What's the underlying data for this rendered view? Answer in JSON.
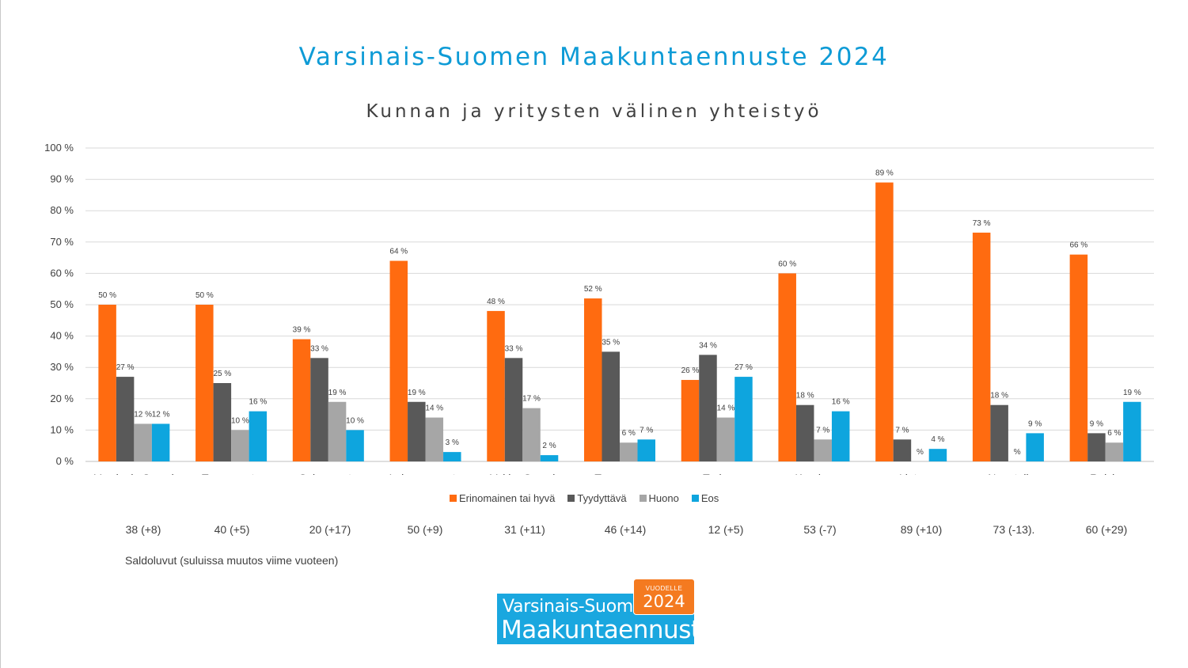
{
  "slide": {
    "title": "Varsinais-Suomen Maakuntaennuste 2024"
  },
  "chart_data": {
    "type": "bar",
    "title": "Kunnan ja yritysten välinen yhteistyö",
    "ylim": [
      0,
      100
    ],
    "yticks": [
      "0 %",
      "10 %",
      "20 %",
      "30 %",
      "40 %",
      "50 %",
      "60 %",
      "70 %",
      "80 %",
      "90 %",
      "100 %"
    ],
    "grid": true,
    "legend_position": "bottom",
    "categories": [
      "Varsinais-Suomi",
      "Turun seutu",
      "Salon seutu",
      "Loimaan seutu",
      "Vakka-Suomi",
      "Turunmaa",
      "Turku",
      "Kaarina",
      "Lieto",
      "Naantali",
      "Raisio"
    ],
    "series": [
      {
        "name": "Erinomainen tai hyvä",
        "color": "#ff6b10",
        "values": [
          50,
          50,
          39,
          64,
          48,
          52,
          26,
          60,
          89,
          73,
          66
        ],
        "labels": [
          "50 %",
          "50 %",
          "39 %",
          "64 %",
          "48 %",
          "52 %",
          "26 %",
          "60 %",
          "89 %",
          "73 %",
          "66 %"
        ]
      },
      {
        "name": "Tyydyttävä",
        "color": "#595959",
        "values": [
          27,
          25,
          33,
          19,
          33,
          35,
          34,
          18,
          7,
          18,
          9
        ],
        "labels": [
          "27 %",
          "25 %",
          "33 %",
          "19 %",
          "33 %",
          "35 %",
          "34 %",
          "18 %",
          "7 %",
          "18 %",
          "9 %"
        ]
      },
      {
        "name": "Huono",
        "color": "#a6a6a6",
        "values": [
          12,
          10,
          19,
          14,
          17,
          6,
          14,
          7,
          0,
          0,
          6
        ],
        "labels": [
          "12 %",
          "10 %",
          "19 %",
          "14 %",
          "17 %",
          "6 %",
          "14 %",
          "7 %",
          "%",
          "%",
          "6 %"
        ]
      },
      {
        "name": "Eos",
        "color": "#0ea5de",
        "values": [
          12,
          16,
          10,
          3,
          2,
          7,
          27,
          16,
          4,
          9,
          19
        ],
        "labels": [
          "12 %",
          "16 %",
          "10 %",
          "3 %",
          "2 %",
          "7 %",
          "27 %",
          "16 %",
          "4 %",
          "9 %",
          "19 %"
        ]
      }
    ]
  },
  "saldo": {
    "values": [
      "38 (+8)",
      "40 (+5)",
      "20 (+17)",
      "50 (+9)",
      "31 (+11)",
      "46 (+14)",
      "12 (+5)",
      "53 (-7)",
      "89 (+10)",
      "73 (-13).",
      "60 (+29)"
    ],
    "note": "Saldoluvut (suluissa muutos viime vuoteen)"
  },
  "logo": {
    "badge_top": "VUODELLE",
    "badge_year": "2024",
    "line1": "Varsinais-Suomen",
    "line2": "Maakuntaennuste"
  }
}
